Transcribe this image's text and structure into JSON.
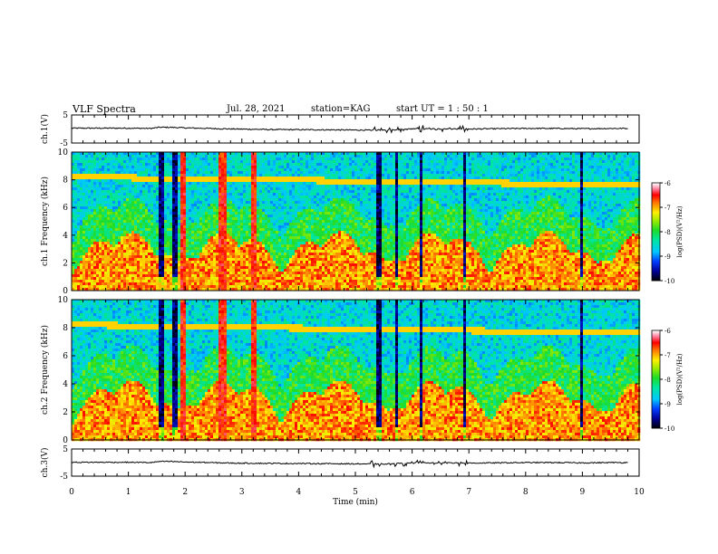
{
  "header": {
    "title": "VLF Spectra",
    "date": "Jul. 28, 2021",
    "station": "station=KAG",
    "start": "start UT =  1 : 50 : 1"
  },
  "chart_data": [
    {
      "type": "line",
      "panel": "ch1-waveform",
      "ylabel": "ch.1(V)",
      "ylim": [
        -5,
        5
      ],
      "y_ticks": [
        5,
        -5
      ],
      "xlim": [
        0,
        10
      ],
      "series": [
        {
          "x": [
            0,
            0.5,
            1.0,
            1.4,
            1.55,
            1.75,
            2.0,
            2.85,
            3.5,
            4.5,
            5.2,
            5.5,
            6.0,
            6.5,
            7.0,
            7.5,
            8.0,
            8.5,
            9.0,
            9.5,
            9.8
          ],
          "values": [
            0.3,
            0.3,
            0.3,
            0.2,
            0.6,
            0.6,
            0.4,
            0.0,
            -0.2,
            -0.3,
            -0.4,
            -0.4,
            0.0,
            0.1,
            0.0,
            0.1,
            0.2,
            0.2,
            0.1,
            0.2,
            0.2
          ]
        }
      ]
    },
    {
      "type": "heatmap",
      "panel": "ch1-spectrogram",
      "ylabel": "ch.1 Frequency (kHz)",
      "ylim": [
        0,
        10
      ],
      "y_ticks": [
        0,
        2,
        4,
        6,
        8,
        10
      ],
      "xlim": [
        0,
        10
      ],
      "colorbar": {
        "label": "log(PSD)(V²/Hz)",
        "range": [
          -10,
          -6
        ],
        "ticks": [
          -6,
          -7,
          -8,
          -9,
          -10
        ]
      }
    },
    {
      "type": "heatmap",
      "panel": "ch2-spectrogram",
      "ylabel": "ch.2 Frequency (kHz)",
      "ylim": [
        0,
        10
      ],
      "y_ticks": [
        0,
        2,
        4,
        6,
        8,
        10
      ],
      "xlim": [
        0,
        10
      ],
      "colorbar": {
        "label": "log(PSD)(V²/Hz)",
        "range": [
          -10,
          -6
        ],
        "ticks": [
          -6,
          -7,
          -8,
          -9,
          -10
        ]
      }
    },
    {
      "type": "line",
      "panel": "ch3-waveform",
      "ylabel": "ch.3(V)",
      "ylim": [
        -5,
        5
      ],
      "y_ticks": [
        5,
        -5
      ],
      "xlim": [
        0,
        10
      ],
      "xlabel": "Time (min)",
      "x_ticks": [
        0,
        1,
        2,
        3,
        4,
        5,
        6,
        7,
        8,
        9,
        10
      ],
      "series": [
        {
          "x": [
            0,
            0.5,
            1.0,
            1.4,
            1.55,
            1.75,
            2.0,
            2.85,
            3.5,
            4.5,
            5.2,
            5.5,
            6.0,
            6.5,
            7.0,
            7.5,
            8.0,
            8.5,
            9.0,
            9.5,
            9.8
          ],
          "values": [
            0.1,
            0.1,
            0.1,
            0.0,
            0.4,
            0.4,
            0.2,
            -0.2,
            -0.3,
            -0.4,
            -0.5,
            -0.5,
            -0.2,
            -0.1,
            -0.2,
            -0.1,
            0.0,
            0.0,
            -0.1,
            0.0,
            0.0
          ]
        }
      ]
    }
  ],
  "spectral_features": {
    "dark_bands_min": [
      1.55,
      1.58,
      1.78,
      1.82,
      5.35,
      5.42,
      5.7,
      6.12,
      6.9,
      8.95
    ],
    "quiet_bands_min": [
      1.92,
      2.6,
      2.67,
      3.2
    ],
    "line_8khz": 8.3
  }
}
